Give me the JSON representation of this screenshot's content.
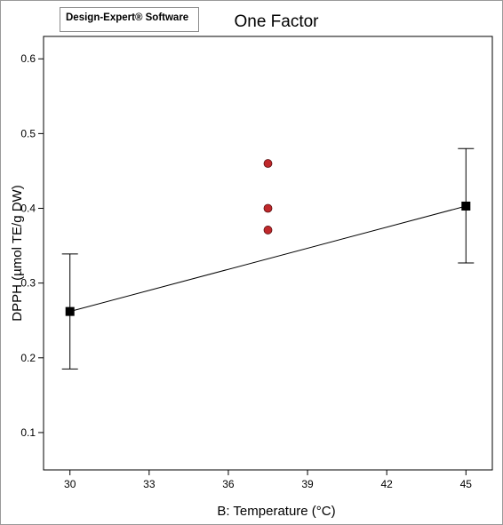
{
  "software_label": "Design-Expert® Software",
  "chart_data": {
    "type": "line",
    "title": "One Factor",
    "xlabel": "B: Temperature (°C)",
    "ylabel": "DPPH (µmol TE/g DW)",
    "xlim": [
      29,
      46
    ],
    "ylim": [
      0.05,
      0.63
    ],
    "x_ticks": [
      30,
      33,
      36,
      39,
      42,
      45
    ],
    "y_ticks": [
      0.1,
      0.2,
      0.3,
      0.4,
      0.5,
      0.6
    ],
    "grid": false,
    "prediction_line": {
      "x": [
        30,
        45
      ],
      "y": [
        0.262,
        0.403
      ],
      "lower_interval": [
        0.185,
        0.327
      ],
      "upper_interval": [
        0.339,
        0.48
      ]
    },
    "design_points": {
      "x": [
        37.5,
        37.5,
        37.5
      ],
      "y": [
        0.46,
        0.4,
        0.371
      ]
    },
    "colors": {
      "line": "#000000",
      "design_point": "#c0282b"
    }
  }
}
